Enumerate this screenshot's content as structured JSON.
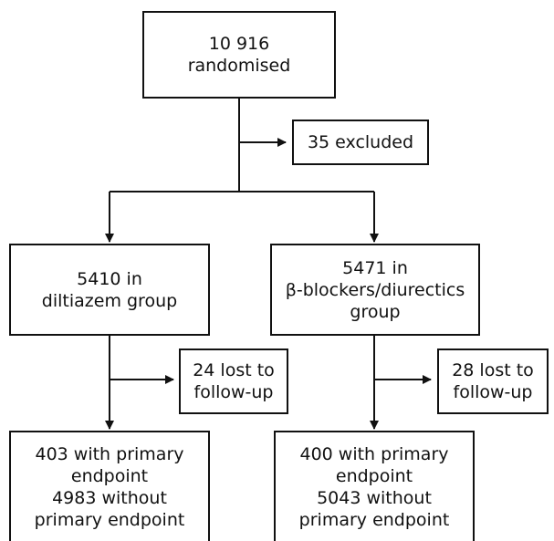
{
  "randomised": {
    "line1": "10 916",
    "line2": "randomised"
  },
  "excluded": {
    "line1": "35 excluded"
  },
  "diltiazem": {
    "line1": "5410 in",
    "line2": "diltiazem group"
  },
  "beta": {
    "line1": "5471 in",
    "line2": "β-blockers/diurectics",
    "line3": "group"
  },
  "lost_left": {
    "line1": "24 lost to",
    "line2": "follow-up"
  },
  "lost_right": {
    "line1": "28 lost to",
    "line2": "follow-up"
  },
  "outcome_left": {
    "line1": "403 with primary",
    "line2": "endpoint",
    "line3": "4983 without",
    "line4": "primary endpoint"
  },
  "outcome_right": {
    "line1": "400 with primary",
    "line2": "endpoint",
    "line3": "5043 without",
    "line4": "primary endpoint"
  }
}
